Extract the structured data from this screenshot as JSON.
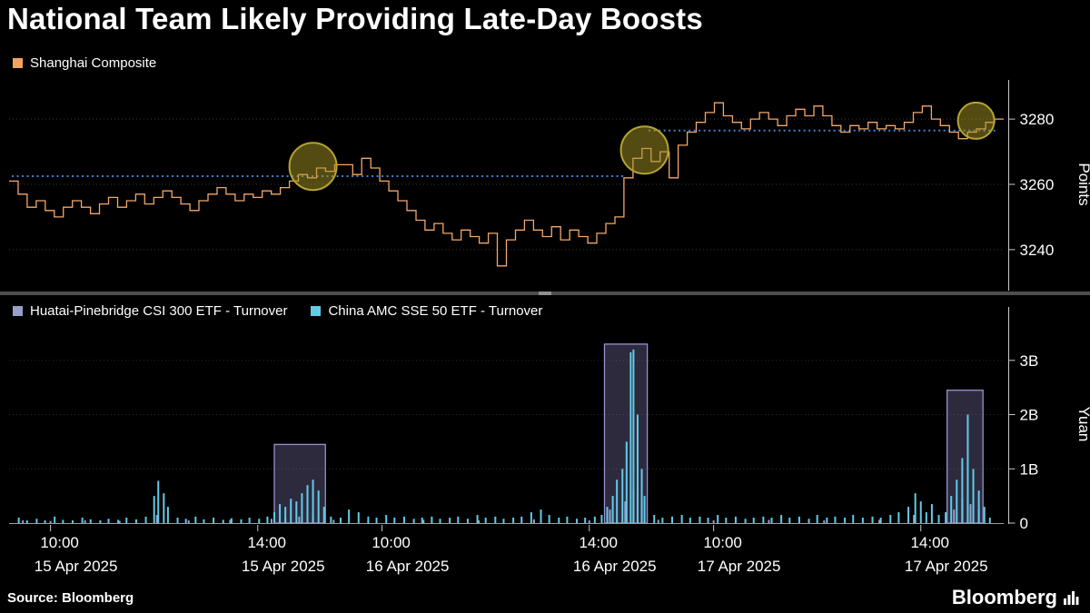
{
  "header": {
    "title": "National Team Likely Providing Late-Day Boosts"
  },
  "top_panel": {
    "legend": [
      {
        "label": "Shanghai Composite",
        "color": "#f2a35f"
      }
    ]
  },
  "bottom_panel": {
    "legend": [
      {
        "label": "Huatai-Pinebridge CSI 300 ETF - Turnover",
        "color": "#97a0c8"
      },
      {
        "label": "China AMC SSE 50 ETF - Turnover",
        "color": "#62cbe8"
      }
    ]
  },
  "x_axis": {
    "ticks": [
      {
        "minute": 30,
        "time": "10:00",
        "date": "15 Apr 2025"
      },
      {
        "minute": 180,
        "time": "14:00",
        "date": "15 Apr 2025"
      },
      {
        "minute": 270,
        "time": "10:00",
        "date": "16 Apr 2025"
      },
      {
        "minute": 420,
        "time": "14:00",
        "date": "16 Apr 2025"
      },
      {
        "minute": 510,
        "time": "10:00",
        "date": "17 Apr 2025"
      },
      {
        "minute": 660,
        "time": "14:00",
        "date": "17 Apr 2025"
      }
    ]
  },
  "footer": {
    "source": "Source: Bloomberg",
    "logo": "Bloomberg"
  },
  "chart_data": [
    {
      "type": "line",
      "title": "Shanghai Composite intraday",
      "x_unit": "trading minutes since 15 Apr 2025 09:30 (240 min per day, 3 days)",
      "x_range": [
        0,
        720
      ],
      "ylabel": "Points",
      "ylim": [
        3228,
        3292
      ],
      "yticks": [
        3240,
        3260,
        3280
      ],
      "grid_color": "#3a3a3a",
      "series": [
        {
          "name": "Shanghai Composite",
          "color": "#f2a76b",
          "values": [
            3261,
            3257,
            3253,
            3255,
            3252,
            3250,
            3253,
            3255,
            3253,
            3251,
            3254,
            3256,
            3253,
            3255,
            3257,
            3254,
            3256,
            3258,
            3256,
            3254,
            3252,
            3255,
            3257,
            3259,
            3257,
            3255,
            3257,
            3256,
            3258,
            3257,
            3259,
            3261,
            3263,
            3262,
            3265,
            3264,
            3266,
            3266,
            3263,
            3268,
            3265,
            3261,
            3258,
            3255,
            3252,
            3249,
            3246,
            3248,
            3245,
            3243,
            3246,
            3244,
            3242,
            3245,
            3235,
            3243,
            3246,
            3249,
            3246,
            3244,
            3247,
            3243,
            3246,
            3244,
            3242,
            3245,
            3248,
            3250,
            3262,
            3268,
            3271,
            3267,
            3270,
            3262,
            3272,
            3276,
            3279,
            3282,
            3285,
            3281,
            3279,
            3277,
            3280,
            3282,
            3280,
            3278,
            3281,
            3283,
            3281,
            3284,
            3281,
            3278,
            3276,
            3278,
            3277,
            3279,
            3277,
            3278,
            3277,
            3279,
            3282,
            3284,
            3280,
            3278,
            3276,
            3274,
            3276,
            3277,
            3279,
            3280,
            3280
          ]
        }
      ],
      "reference_lines": [
        {
          "y": 3262.5,
          "x0": 2,
          "x1": 445,
          "style": "dotted",
          "color": "#3f82d6"
        },
        {
          "y": 3276.5,
          "x0": 463,
          "x1": 716,
          "style": "dotted",
          "color": "#3f82d6"
        }
      ],
      "highlight_style": {
        "fill": "rgba(166,150,35,0.5)",
        "stroke": "#b5a433"
      },
      "highlight_circles": [
        {
          "x": 220,
          "y": 3265.5,
          "radius_px": 26
        },
        {
          "x": 460,
          "y": 3270.5,
          "radius_px": 26
        },
        {
          "x": 700,
          "y": 3279.5,
          "radius_px": 20
        }
      ]
    },
    {
      "type": "bar",
      "title": "ETF turnover",
      "x_range": [
        0,
        720
      ],
      "ylabel": "Yuan",
      "value_unit": "billion yuan",
      "ylim": [
        0,
        3.65
      ],
      "yticks": [
        0,
        1,
        2,
        3
      ],
      "ytick_labels": [
        "0",
        "1B",
        "2B",
        "3B"
      ],
      "grid_color": "#2e2e2e",
      "series": [
        {
          "name": "Huatai-Pinebridge CSI 300 ETF - Turnover",
          "color": "#97a0c8",
          "block_fill": "rgba(148,140,205,0.30)",
          "block_stroke": "#9a90cf",
          "blocks": [
            {
              "x0": 192,
              "x1": 229,
              "value": 1.45
            },
            {
              "x0": 431,
              "x1": 462,
              "value": 3.3
            },
            {
              "x0": 679,
              "x1": 705,
              "value": 2.45
            }
          ],
          "bars": [
            [
              10,
              0.05
            ],
            [
              30,
              0.04
            ],
            [
              55,
              0.05
            ],
            [
              80,
              0.04
            ],
            [
              107,
              0.15
            ],
            [
              130,
              0.05
            ],
            [
              160,
              0.06
            ],
            [
              190,
              0.08
            ],
            [
              200,
              0.1
            ],
            [
              210,
              0.12
            ],
            [
              220,
              0.15
            ],
            [
              235,
              0.06
            ],
            [
              260,
              0.05
            ],
            [
              300,
              0.06
            ],
            [
              340,
              0.05
            ],
            [
              380,
              0.07
            ],
            [
              420,
              0.05
            ],
            [
              435,
              0.25
            ],
            [
              446,
              0.4
            ],
            [
              452,
              0.6
            ],
            [
              458,
              0.35
            ],
            [
              470,
              0.06
            ],
            [
              510,
              0.05
            ],
            [
              550,
              0.06
            ],
            [
              590,
              0.05
            ],
            [
              630,
              0.06
            ],
            [
              655,
              0.15
            ],
            [
              684,
              0.25
            ],
            [
              690,
              0.45
            ],
            [
              696,
              0.35
            ],
            [
              702,
              0.25
            ]
          ]
        },
        {
          "name": "China AMC SSE 50 ETF - Turnover",
          "color": "#62cbe8",
          "bars": [
            [
              7,
              0.1
            ],
            [
              13,
              0.05
            ],
            [
              20,
              0.08
            ],
            [
              26,
              0.05
            ],
            [
              33,
              0.12
            ],
            [
              39,
              0.06
            ],
            [
              46,
              0.05
            ],
            [
              53,
              0.1
            ],
            [
              59,
              0.07
            ],
            [
              66,
              0.05
            ],
            [
              72,
              0.08
            ],
            [
              79,
              0.06
            ],
            [
              85,
              0.1
            ],
            [
              92,
              0.07
            ],
            [
              99,
              0.12
            ],
            [
              105,
              0.5
            ],
            [
              108,
              0.78
            ],
            [
              112,
              0.55
            ],
            [
              115,
              0.3
            ],
            [
              122,
              0.1
            ],
            [
              128,
              0.08
            ],
            [
              135,
              0.12
            ],
            [
              141,
              0.07
            ],
            [
              148,
              0.1
            ],
            [
              155,
              0.06
            ],
            [
              161,
              0.09
            ],
            [
              168,
              0.07
            ],
            [
              174,
              0.1
            ],
            [
              181,
              0.08
            ],
            [
              187,
              0.12
            ],
            [
              192,
              0.2
            ],
            [
              196,
              0.35
            ],
            [
              200,
              0.3
            ],
            [
              204,
              0.45
            ],
            [
              208,
              0.4
            ],
            [
              212,
              0.55
            ],
            [
              216,
              0.7
            ],
            [
              220,
              0.8
            ],
            [
              224,
              0.6
            ],
            [
              228,
              0.3
            ],
            [
              233,
              0.12
            ],
            [
              240,
              0.1
            ],
            [
              246,
              0.25
            ],
            [
              253,
              0.2
            ],
            [
              260,
              0.12
            ],
            [
              266,
              0.1
            ],
            [
              273,
              0.15
            ],
            [
              279,
              0.1
            ],
            [
              286,
              0.12
            ],
            [
              293,
              0.08
            ],
            [
              299,
              0.1
            ],
            [
              306,
              0.12
            ],
            [
              312,
              0.08
            ],
            [
              319,
              0.1
            ],
            [
              325,
              0.12
            ],
            [
              332,
              0.08
            ],
            [
              339,
              0.15
            ],
            [
              345,
              0.1
            ],
            [
              352,
              0.12
            ],
            [
              358,
              0.08
            ],
            [
              365,
              0.1
            ],
            [
              371,
              0.12
            ],
            [
              378,
              0.2
            ],
            [
              385,
              0.25
            ],
            [
              391,
              0.15
            ],
            [
              398,
              0.1
            ],
            [
              404,
              0.12
            ],
            [
              411,
              0.08
            ],
            [
              417,
              0.1
            ],
            [
              424,
              0.12
            ],
            [
              429,
              0.15
            ],
            [
              433,
              0.3
            ],
            [
              437,
              0.5
            ],
            [
              440,
              0.8
            ],
            [
              444,
              1.0
            ],
            [
              447,
              1.5
            ],
            [
              450,
              3.15
            ],
            [
              452,
              3.2
            ],
            [
              455,
              2.0
            ],
            [
              458,
              1.0
            ],
            [
              460,
              0.5
            ],
            [
              467,
              0.15
            ],
            [
              473,
              0.1
            ],
            [
              480,
              0.12
            ],
            [
              487,
              0.15
            ],
            [
              493,
              0.1
            ],
            [
              500,
              0.12
            ],
            [
              506,
              0.1
            ],
            [
              513,
              0.15
            ],
            [
              519,
              0.1
            ],
            [
              526,
              0.12
            ],
            [
              533,
              0.08
            ],
            [
              539,
              0.1
            ],
            [
              546,
              0.12
            ],
            [
              552,
              0.1
            ],
            [
              559,
              0.15
            ],
            [
              565,
              0.1
            ],
            [
              572,
              0.12
            ],
            [
              579,
              0.08
            ],
            [
              585,
              0.15
            ],
            [
              592,
              0.1
            ],
            [
              598,
              0.12
            ],
            [
              605,
              0.1
            ],
            [
              611,
              0.15
            ],
            [
              618,
              0.1
            ],
            [
              625,
              0.12
            ],
            [
              631,
              0.1
            ],
            [
              638,
              0.15
            ],
            [
              644,
              0.2
            ],
            [
              651,
              0.3
            ],
            [
              656,
              0.55
            ],
            [
              660,
              0.4
            ],
            [
              664,
              0.2
            ],
            [
              668,
              0.35
            ],
            [
              673,
              0.15
            ],
            [
              678,
              0.2
            ],
            [
              682,
              0.5
            ],
            [
              686,
              0.8
            ],
            [
              690,
              1.2
            ],
            [
              694,
              2.0
            ],
            [
              698,
              1.0
            ],
            [
              702,
              0.6
            ],
            [
              706,
              0.3
            ],
            [
              710,
              0.1
            ]
          ]
        }
      ]
    }
  ]
}
